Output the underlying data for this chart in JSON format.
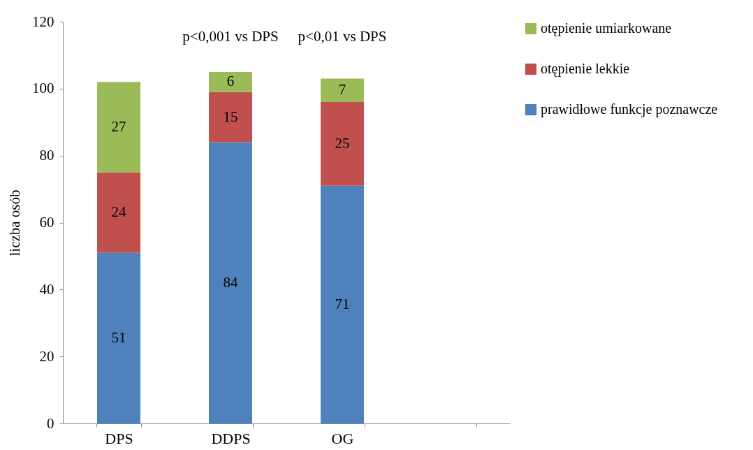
{
  "chart_data": {
    "type": "bar",
    "stacked": true,
    "ylabel": "liczba osób",
    "categories": [
      "DPS",
      "DDPS",
      "OG",
      null
    ],
    "series": [
      {
        "name": "prawidłowe funkcje poznawcze",
        "color": "#4f81bd",
        "values": [
          51,
          84,
          71,
          null
        ]
      },
      {
        "name": "otępienie lekkie",
        "color": "#c0504d",
        "values": [
          24,
          15,
          25,
          null
        ]
      },
      {
        "name": "otępienie umiarkowane",
        "color": "#9bbb59",
        "values": [
          27,
          6,
          7,
          null
        ]
      }
    ],
    "ylim": [
      0,
      120
    ],
    "yticks": [
      0,
      20,
      40,
      60,
      80,
      100,
      120
    ],
    "data_labels": true,
    "legend": "right",
    "grid": false,
    "annotations": [
      "p<0,001 vs DPS",
      "p<0,01 vs DPS"
    ]
  }
}
